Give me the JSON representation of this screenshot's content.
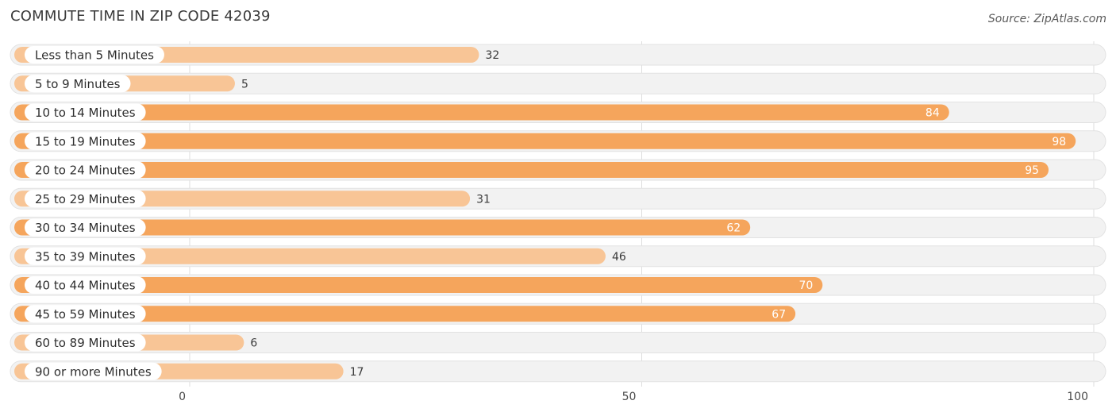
{
  "header": {
    "title": "COMMUTE TIME IN ZIP CODE 42039",
    "source": "Source: ZipAtlas.com"
  },
  "colors": {
    "bar_strong": "#f5a55c",
    "bar_light": "#f8c596",
    "track_bg": "#f2f2f2",
    "track_border": "#e2e2e2",
    "grid": "#dcdcdc"
  },
  "chart_data": {
    "type": "bar",
    "orientation": "horizontal",
    "title": "COMMUTE TIME IN ZIP CODE 42039",
    "categories": [
      "Less than 5 Minutes",
      "5 to 9 Minutes",
      "10 to 14 Minutes",
      "15 to 19 Minutes",
      "20 to 24 Minutes",
      "25 to 29 Minutes",
      "30 to 34 Minutes",
      "35 to 39 Minutes",
      "40 to 44 Minutes",
      "45 to 59 Minutes",
      "60 to 89 Minutes",
      "90 or more Minutes"
    ],
    "values": [
      32,
      5,
      84,
      98,
      95,
      31,
      62,
      46,
      70,
      67,
      6,
      17
    ],
    "xlim": [
      0,
      100
    ],
    "xticks": [
      0,
      50,
      100
    ],
    "xlabel": "",
    "ylabel": "",
    "grid": true,
    "legend": "none"
  }
}
